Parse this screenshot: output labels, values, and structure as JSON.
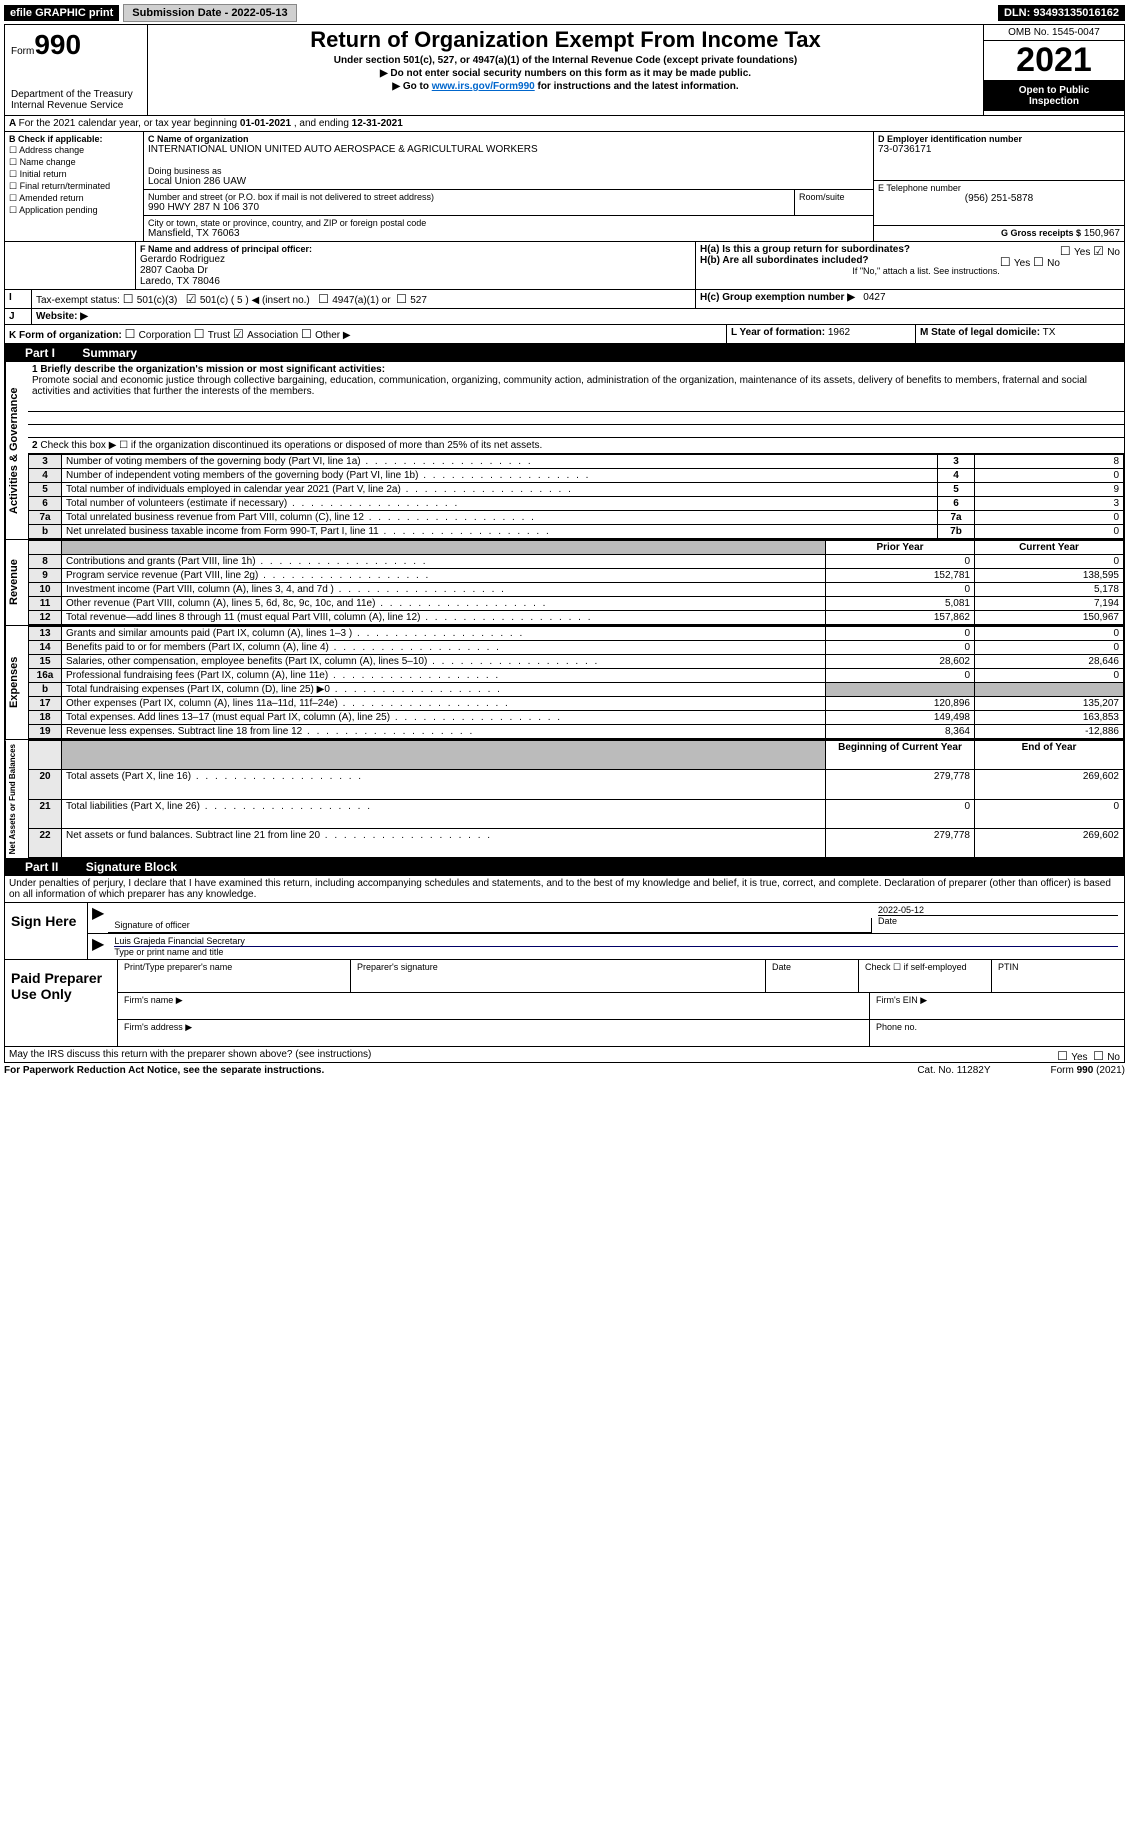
{
  "topbar": {
    "efile": "efile GRAPHIC print",
    "submit_label": "Submission Date - 2022-05-13",
    "dln": "DLN: 93493135016162"
  },
  "header": {
    "form_prefix": "Form",
    "form_no": "990",
    "dept": "Department of the Treasury Internal Revenue Service",
    "title": "Return of Organization Exempt From Income Tax",
    "sub1": "Under section 501(c), 527, or 4947(a)(1) of the Internal Revenue Code (except private foundations)",
    "sub2": "▶ Do not enter social security numbers on this form as it may be made public.",
    "sub3a": "▶ Go to ",
    "sub3link": "www.irs.gov/Form990",
    "sub3b": " for instructions and the latest information.",
    "omb": "OMB No. 1545-0047",
    "year": "2021",
    "inspect1": "Open to Public",
    "inspect2": "Inspection"
  },
  "A": {
    "text_a": "For the 2021 calendar year, or tax year beginning ",
    "begin": "01-01-2021",
    "mid": " , and ending ",
    "end": "12-31-2021"
  },
  "B": {
    "title": "B Check if applicable:",
    "items": [
      "Address change",
      "Name change",
      "Initial return",
      "Final return/terminated",
      "Amended return",
      "Application pending"
    ]
  },
  "C": {
    "label": "C Name of organization",
    "name": "INTERNATIONAL UNION UNITED AUTO AEROSPACE & AGRICULTURAL WORKERS",
    "dba_label": "Doing business as",
    "dba": "Local Union 286 UAW",
    "street_label": "Number and street (or P.O. box if mail is not delivered to street address)",
    "room_label": "Room/suite",
    "street": "990 HWY 287 N 106 370",
    "city_label": "City or town, state or province, country, and ZIP or foreign postal code",
    "city": "Mansfield, TX  76063"
  },
  "D": {
    "label": "D Employer identification number",
    "value": "73-0736171"
  },
  "E": {
    "label": "E Telephone number",
    "value": "(956) 251-5878"
  },
  "G": {
    "label": "G Gross receipts $",
    "value": "150,967"
  },
  "F": {
    "label": "F Name and address of principal officer:",
    "name": "Gerardo Rodriguez",
    "addr1": "2807 Caoba Dr",
    "addr2": "Laredo, TX  78046"
  },
  "H": {
    "a_label": "H(a)  Is this a group return for subordinates?",
    "a_yes": "Yes",
    "a_no": "No",
    "b_label": "H(b)  Are all subordinates included?",
    "b_note": "If \"No,\" attach a list. See instructions.",
    "c_label": "H(c)  Group exemption number ▶",
    "c_value": "0427"
  },
  "I": {
    "label": "Tax-exempt status:",
    "opts": [
      "501(c)(3)",
      "501(c) ( 5 ) ◀ (insert no.)",
      "4947(a)(1) or",
      "527"
    ]
  },
  "J": {
    "label": "Website: ▶"
  },
  "K": {
    "label": "K Form of organization:",
    "opts": [
      "Corporation",
      "Trust",
      "Association",
      "Other ▶"
    ]
  },
  "L": {
    "label": "L Year of formation:",
    "value": "1962"
  },
  "M": {
    "label": "M State of legal domicile:",
    "value": "TX"
  },
  "parts": {
    "p1": "Part I",
    "p1_title": "Summary",
    "p2": "Part II",
    "p2_title": "Signature Block"
  },
  "summary": {
    "line1_label": "1 Briefly describe the organization's mission or most significant activities:",
    "mission": "Promote social and economic justice through collective bargaining, education, communication, organizing, community action, administration of the organization, maintenance of its assets, delivery of benefits to members, fraternal and social activities and activities that further the interests of the members.",
    "line2": "Check this box ▶ ☐  if the organization discontinued its operations or disposed of more than 25% of its net assets.",
    "rows_small": [
      {
        "n": "3",
        "label": "Number of voting members of the governing body (Part VI, line 1a)",
        "box": "3",
        "val": "8"
      },
      {
        "n": "4",
        "label": "Number of independent voting members of the governing body (Part VI, line 1b)",
        "box": "4",
        "val": "0"
      },
      {
        "n": "5",
        "label": "Total number of individuals employed in calendar year 2021 (Part V, line 2a)",
        "box": "5",
        "val": "9"
      },
      {
        "n": "6",
        "label": "Total number of volunteers (estimate if necessary)",
        "box": "6",
        "val": "3"
      },
      {
        "n": "7a",
        "label": "Total unrelated business revenue from Part VIII, column (C), line 12",
        "box": "7a",
        "val": "0"
      },
      {
        "n": "b",
        "label": "Net unrelated business taxable income from Form 990-T, Part I, line 11",
        "box": "7b",
        "val": "0"
      }
    ],
    "col_prior": "Prior Year",
    "col_current": "Current Year",
    "revenue": [
      {
        "n": "8",
        "label": "Contributions and grants (Part VIII, line 1h)",
        "prior": "0",
        "curr": "0"
      },
      {
        "n": "9",
        "label": "Program service revenue (Part VIII, line 2g)",
        "prior": "152,781",
        "curr": "138,595"
      },
      {
        "n": "10",
        "label": "Investment income (Part VIII, column (A), lines 3, 4, and 7d )",
        "prior": "0",
        "curr": "5,178"
      },
      {
        "n": "11",
        "label": "Other revenue (Part VIII, column (A), lines 5, 6d, 8c, 9c, 10c, and 11e)",
        "prior": "5,081",
        "curr": "7,194"
      },
      {
        "n": "12",
        "label": "Total revenue—add lines 8 through 11 (must equal Part VIII, column (A), line 12)",
        "prior": "157,862",
        "curr": "150,967"
      }
    ],
    "expenses": [
      {
        "n": "13",
        "label": "Grants and similar amounts paid (Part IX, column (A), lines 1–3 )",
        "prior": "0",
        "curr": "0"
      },
      {
        "n": "14",
        "label": "Benefits paid to or for members (Part IX, column (A), line 4)",
        "prior": "0",
        "curr": "0"
      },
      {
        "n": "15",
        "label": "Salaries, other compensation, employee benefits (Part IX, column (A), lines 5–10)",
        "prior": "28,602",
        "curr": "28,646"
      },
      {
        "n": "16a",
        "label": "Professional fundraising fees (Part IX, column (A), line 11e)",
        "prior": "0",
        "curr": "0"
      },
      {
        "n": "b",
        "label": "Total fundraising expenses (Part IX, column (D), line 25) ▶0",
        "prior": "",
        "curr": "",
        "shaded": true
      },
      {
        "n": "17",
        "label": "Other expenses (Part IX, column (A), lines 11a–11d, 11f–24e)",
        "prior": "120,896",
        "curr": "135,207"
      },
      {
        "n": "18",
        "label": "Total expenses. Add lines 13–17 (must equal Part IX, column (A), line 25)",
        "prior": "149,498",
        "curr": "163,853"
      },
      {
        "n": "19",
        "label": "Revenue less expenses. Subtract line 18 from line 12",
        "prior": "8,364",
        "curr": "-12,886"
      }
    ],
    "col_begin": "Beginning of Current Year",
    "col_end": "End of Year",
    "netassets": [
      {
        "n": "20",
        "label": "Total assets (Part X, line 16)",
        "prior": "279,778",
        "curr": "269,602"
      },
      {
        "n": "21",
        "label": "Total liabilities (Part X, line 26)",
        "prior": "0",
        "curr": "0"
      },
      {
        "n": "22",
        "label": "Net assets or fund balances. Subtract line 21 from line 20",
        "prior": "279,778",
        "curr": "269,602"
      }
    ]
  },
  "side_labels": {
    "gov": "Activities & Governance",
    "rev": "Revenue",
    "exp": "Expenses",
    "net": "Net Assets or Fund Balances"
  },
  "sig": {
    "perjury": "Under penalties of perjury, I declare that I have examined this return, including accompanying schedules and statements, and to the best of my knowledge and belief, it is true, correct, and complete. Declaration of preparer (other than officer) is based on all information of which preparer has any knowledge.",
    "sign_here": "Sign Here",
    "sig_officer": "Signature of officer",
    "date_label": "Date",
    "date": "2022-05-12",
    "typed_name": "Luis Grajeda  Financial Secretary",
    "typed_label": "Type or print name and title",
    "paid": "Paid Preparer Use Only",
    "prep_name": "Print/Type preparer's name",
    "prep_sig": "Preparer's signature",
    "prep_date": "Date",
    "check_self": "Check ☐ if self-employed",
    "ptin": "PTIN",
    "firm_name": "Firm's name  ▶",
    "firm_ein": "Firm's EIN ▶",
    "firm_addr": "Firm's address ▶",
    "phone": "Phone no.",
    "may_irs": "May the IRS discuss this return with the preparer shown above? (see instructions)",
    "yes": "Yes",
    "no": "No"
  },
  "footer": {
    "pra": "For Paperwork Reduction Act Notice, see the separate instructions.",
    "cat": "Cat. No. 11282Y",
    "form": "Form 990 (2021)"
  }
}
